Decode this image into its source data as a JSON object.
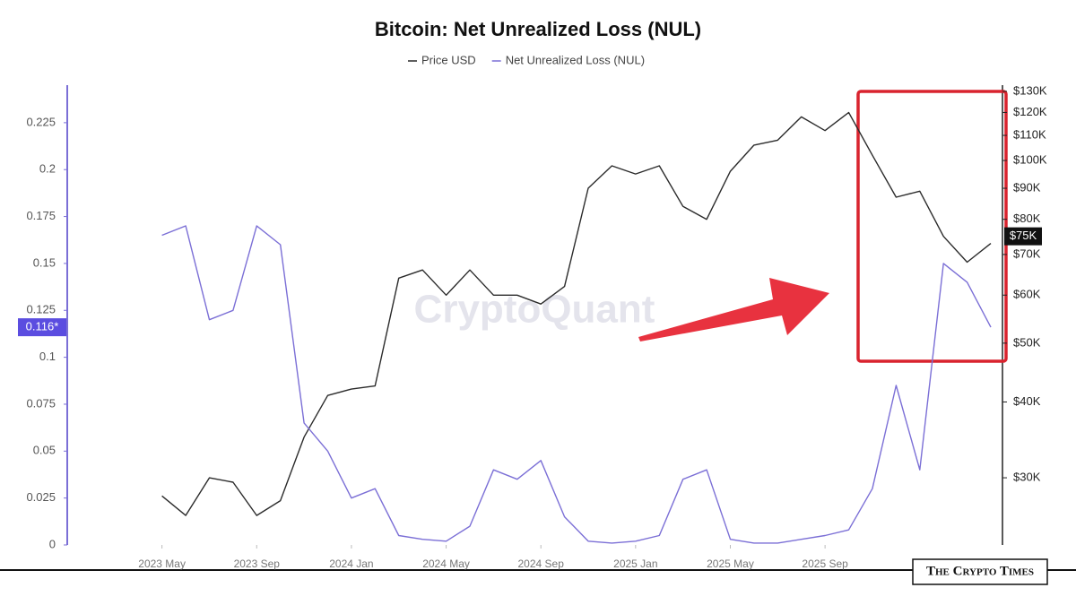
{
  "chart_data": {
    "type": "line",
    "title": "Bitcoin: Net Unrealized Loss (NUL)",
    "watermark": "CryptoQuant",
    "logo": "The Crypto Times",
    "x": [
      "2023-05",
      "2023-06",
      "2023-07",
      "2023-08",
      "2023-09",
      "2023-10",
      "2023-11",
      "2023-12",
      "2024-01",
      "2024-02",
      "2024-03",
      "2024-04",
      "2024-05",
      "2024-06",
      "2024-07",
      "2024-08",
      "2024-09",
      "2024-10",
      "2024-11",
      "2024-12",
      "2025-01",
      "2025-02",
      "2025-03",
      "2025-04",
      "2025-05",
      "2025-06",
      "2025-07",
      "2025-08",
      "2025-09",
      "2025-10",
      "2025-11",
      "2025-12",
      "2026-01",
      "2026-02",
      "2026-03",
      "2026-04"
    ],
    "xlim": [
      "2023-01",
      "2026-04"
    ],
    "xticks": [
      {
        "value": "2023-05",
        "label": "2023 May"
      },
      {
        "value": "2023-09",
        "label": "2023 Sep"
      },
      {
        "value": "2024-01",
        "label": "2024 Jan"
      },
      {
        "value": "2024-05",
        "label": "2024 May"
      },
      {
        "value": "2024-09",
        "label": "2024 Sep"
      },
      {
        "value": "2025-01",
        "label": "2025 Jan"
      },
      {
        "value": "2025-05",
        "label": "2025 May"
      },
      {
        "value": "2025-09",
        "label": "2025 Sep"
      }
    ],
    "series": [
      {
        "name": "Price USD",
        "color": "#2b2b2b",
        "axis": "y2",
        "values": [
          28000,
          26000,
          30000,
          29500,
          26000,
          27500,
          35000,
          41000,
          42000,
          42500,
          64000,
          66000,
          60000,
          66000,
          60000,
          60000,
          58000,
          62000,
          90000,
          98000,
          95000,
          98000,
          84000,
          80000,
          96000,
          106000,
          108000,
          118000,
          112000,
          120000,
          102000,
          87000,
          89000,
          75000,
          68000,
          73000
        ]
      },
      {
        "name": "Net Unrealized Loss (NUL)",
        "color": "#7b6fd6",
        "axis": "y",
        "values": [
          0.165,
          0.17,
          0.12,
          0.125,
          0.17,
          0.16,
          0.065,
          0.05,
          0.025,
          0.03,
          0.005,
          0.003,
          0.002,
          0.01,
          0.04,
          0.035,
          0.045,
          0.015,
          0.002,
          0.001,
          0.002,
          0.005,
          0.035,
          0.04,
          0.003,
          0.001,
          0.001,
          0.003,
          0.005,
          0.008,
          0.03,
          0.085,
          0.04,
          0.15,
          0.14,
          0.116
        ]
      }
    ],
    "ylim": [
      0,
      0.245
    ],
    "yticks": [
      0,
      0.025,
      0.05,
      0.075,
      0.1,
      0.125,
      0.15,
      0.175,
      0.2,
      0.225
    ],
    "y2lim": [
      23250,
      133100
    ],
    "y2scale": "log",
    "y2ticks": [
      {
        "value": 30000,
        "label": "$30K"
      },
      {
        "value": 40000,
        "label": "$40K"
      },
      {
        "value": 50000,
        "label": "$50K"
      },
      {
        "value": 60000,
        "label": "$60K"
      },
      {
        "value": 70000,
        "label": "$70K"
      },
      {
        "value": 80000,
        "label": "$80K"
      },
      {
        "value": 90000,
        "label": "$90K"
      },
      {
        "value": 100000,
        "label": "$100K"
      },
      {
        "value": 110000,
        "label": "$110K"
      },
      {
        "value": 120000,
        "label": "$120K"
      },
      {
        "value": 130000,
        "label": "$130K"
      }
    ],
    "annotations": [
      {
        "label": "0.116*",
        "value": 0.116,
        "axis": "y"
      },
      {
        "label": "$75K",
        "value": 75000,
        "axis": "y2"
      }
    ],
    "grid": false
  }
}
